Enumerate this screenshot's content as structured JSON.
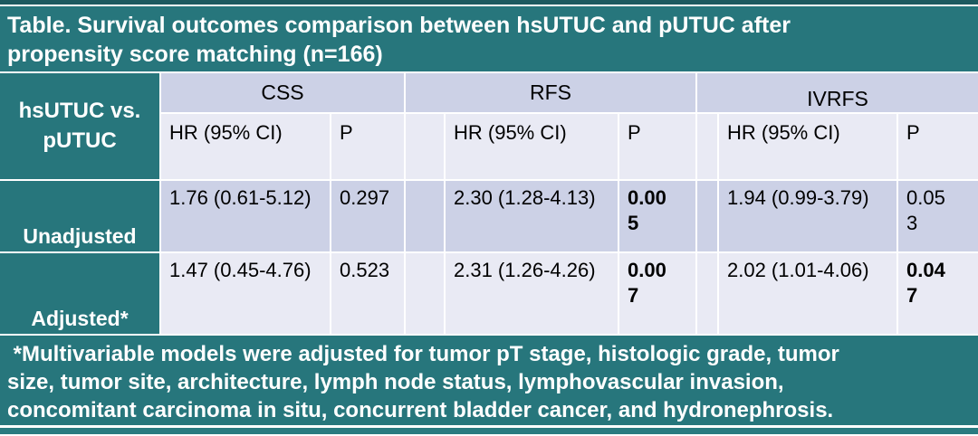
{
  "title": "Table. Survival outcomes comparison between hsUTUC and pUTUC after\npropensity score matching (n=166)",
  "header": {
    "row_label": "hsUTUC vs.\npUTUC",
    "groups": [
      {
        "label": "CSS"
      },
      {
        "label": "RFS"
      },
      {
        "label": "IVRFS"
      }
    ],
    "sub": {
      "hr": "HR (95% CI)",
      "p": "P"
    }
  },
  "rows": [
    {
      "label": "Unadjusted",
      "css": {
        "hr": "1.76 (0.61-5.12)",
        "p": "0.297"
      },
      "rfs": {
        "hr": "2.30 (1.28-4.13)",
        "p": "0.005"
      },
      "ivrfs": {
        "hr": "1.94 (0.99-3.79)",
        "p": "0.053"
      }
    },
    {
      "label": "Adjusted*",
      "css": {
        "hr": "1.47 (0.45-4.76)",
        "p": "0.523"
      },
      "rfs": {
        "hr": "2.31 (1.26-4.26)",
        "p": "0.007"
      },
      "ivrfs": {
        "hr": "2.02 (1.01-4.06)",
        "p": "0.047"
      }
    }
  ],
  "footnote": " *Multivariable models were adjusted for tumor pT stage, histologic grade, tumor\nsize, tumor site, architecture, lymph node status, lymphovascular invasion,\nconcomitant carcinoma in situ, concurrent bladder cancer, and hydronephrosis.",
  "colors": {
    "teal": "#27767c",
    "teal_dark": "#1d5a60",
    "row_dark_lavender": "#ccd1e6",
    "row_light_lavender": "#e9eaf4",
    "significant_p_style": "bold"
  }
}
